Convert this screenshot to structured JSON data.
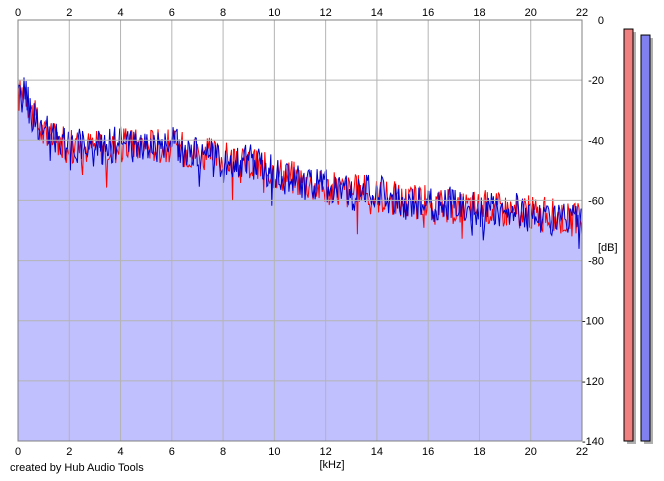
{
  "footer": {
    "credit": "created by Hub Audio Tools"
  },
  "colors": {
    "background": "#ffffff",
    "plot_fill": "#c0c0ff",
    "grid": "#b4b4b4",
    "left_channel": "#ff0000",
    "right_channel": "#0000cc",
    "left_meter": "#f08080",
    "right_meter": "#8080f0",
    "meter_shadow": "#b0b0b0"
  },
  "chart_data": {
    "type": "line",
    "title": "",
    "xlabel": "[kHz]",
    "ylabel": "[dB]",
    "xlim": [
      0,
      22
    ],
    "ylim": [
      -140,
      0
    ],
    "x_ticks": [
      "0",
      "2",
      "4",
      "6",
      "8",
      "10",
      "12",
      "14",
      "16",
      "18",
      "20",
      "22"
    ],
    "y_ticks": [
      "0",
      "-20",
      "-40",
      "-60",
      "-80",
      "-100",
      "-120",
      "-140"
    ],
    "x_tick_values": [
      0,
      2,
      4,
      6,
      8,
      10,
      12,
      14,
      16,
      18,
      20,
      22
    ],
    "y_tick_values": [
      0,
      -20,
      -40,
      -60,
      -80,
      -100,
      -120,
      -140
    ],
    "grid": true,
    "x": [
      0.1,
      0.25,
      0.5,
      1,
      1.5,
      2,
      3,
      4,
      5,
      6,
      7,
      8,
      9,
      10,
      11,
      12,
      13,
      14,
      15,
      16,
      17,
      18,
      19,
      20,
      21,
      22
    ],
    "series": [
      {
        "values": [
          -25,
          -22,
          -30,
          -38,
          -40,
          -42,
          -42,
          -42,
          -41,
          -42,
          -44,
          -46,
          -48,
          -50,
          -53,
          -56,
          -57,
          -58,
          -60,
          -61,
          -62,
          -62,
          -63,
          -64,
          -65,
          -67
        ]
      },
      {
        "values": [
          -27,
          -23,
          -31,
          -37,
          -40,
          -41,
          -43,
          -41,
          -42,
          -41,
          -45,
          -47,
          -47,
          -51,
          -54,
          -55,
          -58,
          -57,
          -61,
          -62,
          -61,
          -63,
          -62,
          -65,
          -66,
          -68
        ]
      }
    ],
    "meters": {
      "left_db": -3,
      "right_db": -5
    }
  }
}
